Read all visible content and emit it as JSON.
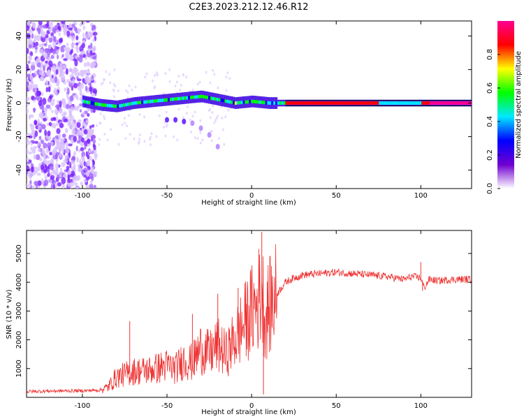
{
  "title": "C2E3.2023.212.12.46.R12",
  "chart_data": [
    {
      "type": "heatmap",
      "xlabel": "Height of straight line (km)",
      "ylabel": "Frequency (Hz)",
      "xlim": [
        -133,
        130
      ],
      "ylim": [
        -51,
        49
      ],
      "xticks": [
        -100,
        -50,
        0,
        50,
        100
      ],
      "yticks": [
        -40,
        -20,
        0,
        20,
        40
      ],
      "colorbar": {
        "label": "Normalized spectral amplitude",
        "range": [
          0,
          1
        ],
        "ticks": [
          "0.0",
          "0.2",
          "0.4",
          "0.6",
          "0.8"
        ],
        "colors": [
          "#ffffff",
          "#7000d0",
          "#0000ff",
          "#00e8ff",
          "#00ff00",
          "#ffff00",
          "#ff0000",
          "#ff0090"
        ]
      },
      "ridge": {
        "x": [
          -100,
          -90,
          -80,
          -70,
          -60,
          -50,
          -40,
          -30,
          -20,
          -10,
          0,
          10,
          20,
          50,
          100,
          130
        ],
        "frequency": [
          1,
          -1,
          -2,
          0,
          1,
          2,
          3,
          4,
          2,
          0,
          1,
          0,
          0,
          0,
          0,
          0
        ]
      },
      "echo_branch": {
        "x": [
          -50,
          -45,
          -40,
          -35,
          -30,
          -25,
          -20
        ],
        "frequency": [
          -10,
          -10,
          -11,
          -12,
          -15,
          -19,
          -26
        ]
      }
    },
    {
      "type": "line",
      "xlabel": "Height of straight line (km)",
      "ylabel": "SNR (10 * v/v)",
      "xlim": [
        -133,
        130
      ],
      "ylim": [
        0,
        5800
      ],
      "xticks": [
        -100,
        -50,
        0,
        50,
        100
      ],
      "yticks": [
        1000,
        2000,
        3000,
        4000,
        5000
      ],
      "series": [
        {
          "name": "SNR",
          "color": "#ee3333",
          "x": [
            -133,
            -120,
            -100,
            -90,
            -85,
            -80,
            -70,
            -60,
            -50,
            -45,
            -40,
            -35,
            -30,
            -25,
            -20,
            -15,
            -10,
            -5,
            0,
            3,
            6,
            8,
            10,
            12,
            15,
            20,
            25,
            30,
            40,
            50,
            60,
            70,
            80,
            90,
            95,
            100,
            102,
            105,
            110,
            120,
            130
          ],
          "values": [
            200,
            220,
            230,
            250,
            350,
            700,
            900,
            950,
            1100,
            1000,
            1300,
            1200,
            1700,
            1500,
            1800,
            1500,
            2000,
            2500,
            3000,
            3200,
            3800,
            2700,
            3100,
            3300,
            3600,
            4000,
            4150,
            4250,
            4300,
            4350,
            4300,
            4250,
            4200,
            4100,
            4200,
            4150,
            3800,
            4100,
            4050,
            4100,
            4100
          ],
          "spikes": [
            {
              "x": -72,
              "value": 2650
            },
            {
              "x": -35,
              "value": 2900
            },
            {
              "x": -20,
              "value": 3600
            },
            {
              "x": -8,
              "value": 3800
            },
            {
              "x": 6,
              "value": 5750
            },
            {
              "x": 7,
              "value": 100
            },
            {
              "x": 100,
              "value": 4700
            },
            {
              "x": 101,
              "value": 3700
            }
          ]
        }
      ]
    }
  ]
}
